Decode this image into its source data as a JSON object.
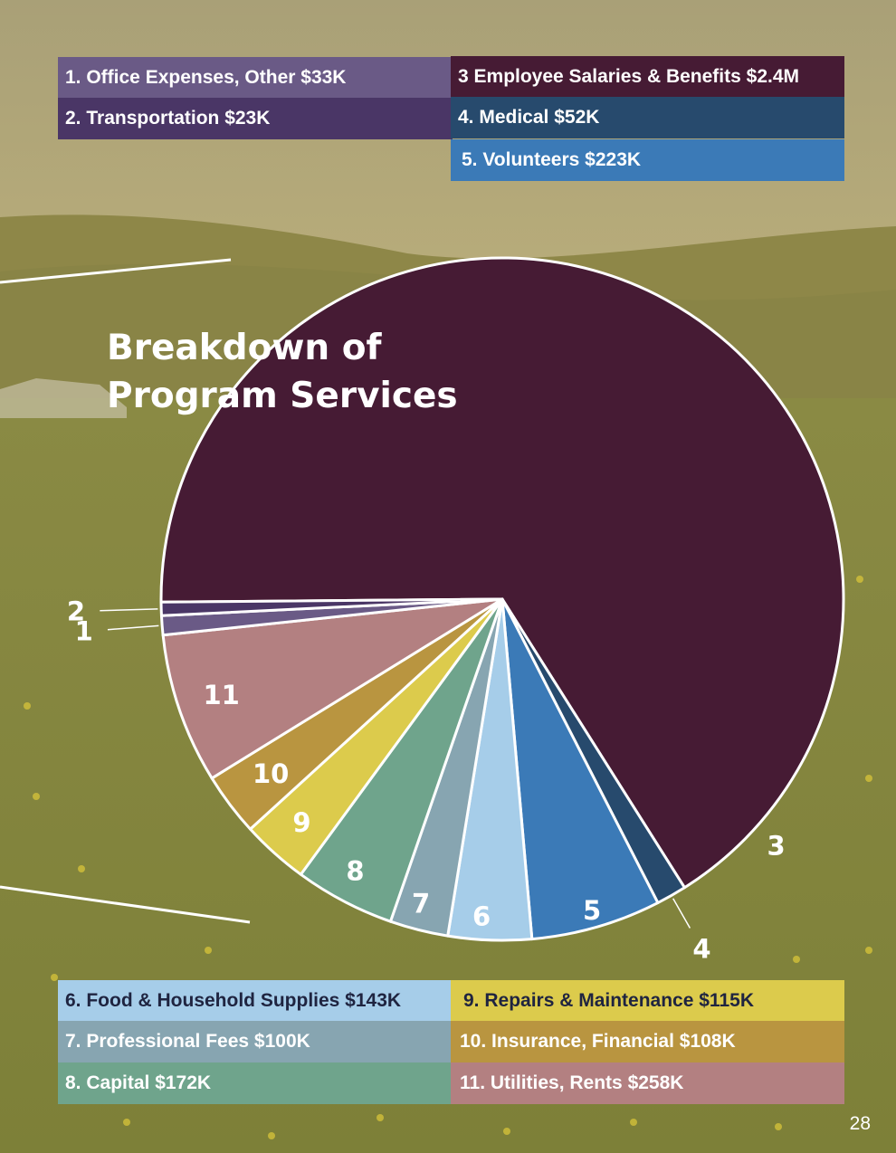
{
  "chart_data": {
    "type": "pie",
    "title": "Breakdown of Program Services",
    "slices": [
      {
        "id": "1",
        "label": "1. Office Expenses, Other $33K",
        "value": 33,
        "color": "#6a5a86"
      },
      {
        "id": "2",
        "label": "2. Transportation $23K",
        "value": 23,
        "color": "#4a3666"
      },
      {
        "id": "3",
        "label": "3 Employee Salaries & Benefits $2.4M",
        "value": 2400,
        "color": "#461b34"
      },
      {
        "id": "4",
        "label": "4. Medical $52K",
        "value": 52,
        "color": "#274a6d"
      },
      {
        "id": "5",
        "label": "5. Volunteers $223K",
        "value": 223,
        "color": "#3b7ab7"
      },
      {
        "id": "6",
        "label": "6. Food & Household Supplies $143K",
        "value": 143,
        "color": "#a6cde9"
      },
      {
        "id": "7",
        "label": "7. Professional Fees $100K",
        "value": 100,
        "color": "#87a5b1"
      },
      {
        "id": "8",
        "label": "8. Capital $172K",
        "value": 172,
        "color": "#6fa48c"
      },
      {
        "id": "9",
        "label": "9. Repairs & Maintenance $115K",
        "value": 115,
        "color": "#dccb4c"
      },
      {
        "id": "10",
        "label": "10. Insurance, Financial $108K",
        "value": 108,
        "color": "#b99540"
      },
      {
        "id": "11",
        "label": "11. Utilities, Rents $258K",
        "value": 258,
        "color": "#b38081"
      }
    ]
  },
  "page_number": "28"
}
